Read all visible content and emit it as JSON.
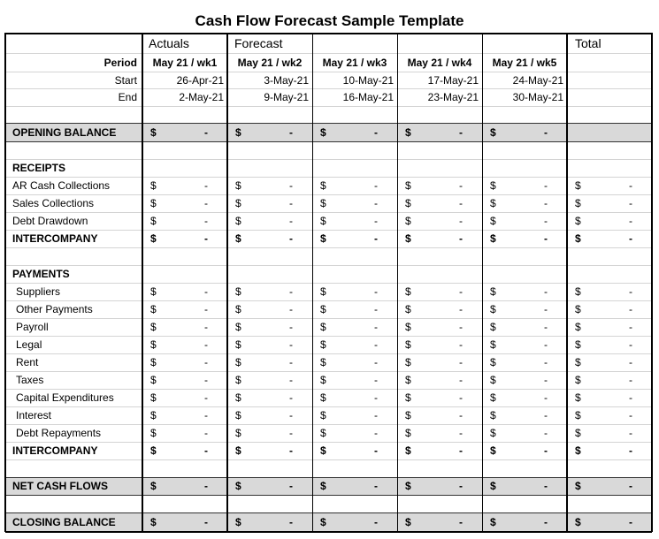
{
  "title": "Cash Flow Forecast Sample Template",
  "header": {
    "groups": [
      "Actuals",
      "Forecast",
      "Total"
    ],
    "period_label": "Period",
    "start_label": "Start",
    "end_label": "End",
    "periods": [
      "May 21 / wk1",
      "May 21 / wk2",
      "May 21 / wk3",
      "May 21 / wk4",
      "May 21 / wk5"
    ],
    "starts": [
      "26-Apr-21",
      "3-May-21",
      "10-May-21",
      "17-May-21",
      "24-May-21"
    ],
    "ends": [
      "2-May-21",
      "9-May-21",
      "16-May-21",
      "23-May-21",
      "30-May-21"
    ]
  },
  "opening_balance": {
    "label": "OPENING BALANCE",
    "cells": [
      [
        "$",
        "-"
      ],
      [
        "$",
        "-"
      ],
      [
        "$",
        "-"
      ],
      [
        "$",
        "-"
      ],
      [
        "$",
        "-"
      ]
    ]
  },
  "receipts": {
    "heading": "RECEIPTS",
    "items": [
      {
        "label": "AR Cash Collections",
        "cells": [
          [
            "$",
            "-"
          ],
          [
            "$",
            "-"
          ],
          [
            "$",
            "-"
          ],
          [
            "$",
            "-"
          ],
          [
            "$",
            "-"
          ],
          [
            "$",
            "-"
          ]
        ]
      },
      {
        "label": "Sales Collections",
        "cells": [
          [
            "$",
            "-"
          ],
          [
            "$",
            "-"
          ],
          [
            "$",
            "-"
          ],
          [
            "$",
            "-"
          ],
          [
            "$",
            "-"
          ],
          [
            "$",
            "-"
          ]
        ]
      },
      {
        "label": "Debt Drawdown",
        "cells": [
          [
            "$",
            "-"
          ],
          [
            "$",
            "-"
          ],
          [
            "$",
            "-"
          ],
          [
            "$",
            "-"
          ],
          [
            "$",
            "-"
          ],
          [
            "$",
            "-"
          ]
        ]
      }
    ],
    "intercompany": {
      "label": "INTERCOMPANY",
      "cells": [
        [
          "$",
          "-"
        ],
        [
          "$",
          "-"
        ],
        [
          "$",
          "-"
        ],
        [
          "$",
          "-"
        ],
        [
          "$",
          "-"
        ],
        [
          "$",
          "-"
        ]
      ]
    }
  },
  "payments": {
    "heading": "PAYMENTS",
    "items": [
      {
        "label": "Suppliers",
        "cells": [
          [
            "$",
            "-"
          ],
          [
            "$",
            "-"
          ],
          [
            "$",
            "-"
          ],
          [
            "$",
            "-"
          ],
          [
            "$",
            "-"
          ],
          [
            "$",
            "-"
          ]
        ]
      },
      {
        "label": "Other Payments",
        "cells": [
          [
            "$",
            "-"
          ],
          [
            "$",
            "-"
          ],
          [
            "$",
            "-"
          ],
          [
            "$",
            "-"
          ],
          [
            "$",
            "-"
          ],
          [
            "$",
            "-"
          ]
        ]
      },
      {
        "label": "Payroll",
        "cells": [
          [
            "$",
            "-"
          ],
          [
            "$",
            "-"
          ],
          [
            "$",
            "-"
          ],
          [
            "$",
            "-"
          ],
          [
            "$",
            "-"
          ],
          [
            "$",
            "-"
          ]
        ]
      },
      {
        "label": "Legal",
        "cells": [
          [
            "$",
            "-"
          ],
          [
            "$",
            "-"
          ],
          [
            "$",
            "-"
          ],
          [
            "$",
            "-"
          ],
          [
            "$",
            "-"
          ],
          [
            "$",
            "-"
          ]
        ]
      },
      {
        "label": "Rent",
        "cells": [
          [
            "$",
            "-"
          ],
          [
            "$",
            "-"
          ],
          [
            "$",
            "-"
          ],
          [
            "$",
            "-"
          ],
          [
            "$",
            "-"
          ],
          [
            "$",
            "-"
          ]
        ]
      },
      {
        "label": "Taxes",
        "cells": [
          [
            "$",
            "-"
          ],
          [
            "$",
            "-"
          ],
          [
            "$",
            "-"
          ],
          [
            "$",
            "-"
          ],
          [
            "$",
            "-"
          ],
          [
            "$",
            "-"
          ]
        ]
      },
      {
        "label": "Capital Expenditures",
        "cells": [
          [
            "$",
            "-"
          ],
          [
            "$",
            "-"
          ],
          [
            "$",
            "-"
          ],
          [
            "$",
            "-"
          ],
          [
            "$",
            "-"
          ],
          [
            "$",
            "-"
          ]
        ]
      },
      {
        "label": "Interest",
        "cells": [
          [
            "$",
            "-"
          ],
          [
            "$",
            "-"
          ],
          [
            "$",
            "-"
          ],
          [
            "$",
            "-"
          ],
          [
            "$",
            "-"
          ],
          [
            "$",
            "-"
          ]
        ]
      },
      {
        "label": "Debt Repayments",
        "cells": [
          [
            "$",
            "-"
          ],
          [
            "$",
            "-"
          ],
          [
            "$",
            "-"
          ],
          [
            "$",
            "-"
          ],
          [
            "$",
            "-"
          ],
          [
            "$",
            "-"
          ]
        ]
      }
    ],
    "intercompany": {
      "label": "INTERCOMPANY",
      "cells": [
        [
          "$",
          "-"
        ],
        [
          "$",
          "-"
        ],
        [
          "$",
          "-"
        ],
        [
          "$",
          "-"
        ],
        [
          "$",
          "-"
        ],
        [
          "$",
          "-"
        ]
      ]
    }
  },
  "net_cash_flows": {
    "label": "NET CASH FLOWS",
    "cells": [
      [
        "$",
        "-"
      ],
      [
        "$",
        "-"
      ],
      [
        "$",
        "-"
      ],
      [
        "$",
        "-"
      ],
      [
        "$",
        "-"
      ],
      [
        "$",
        "-"
      ]
    ]
  },
  "closing_balance": {
    "label": "CLOSING BALANCE",
    "cells": [
      [
        "$",
        "-"
      ],
      [
        "$",
        "-"
      ],
      [
        "$",
        "-"
      ],
      [
        "$",
        "-"
      ],
      [
        "$",
        "-"
      ],
      [
        "$",
        "-"
      ]
    ]
  }
}
